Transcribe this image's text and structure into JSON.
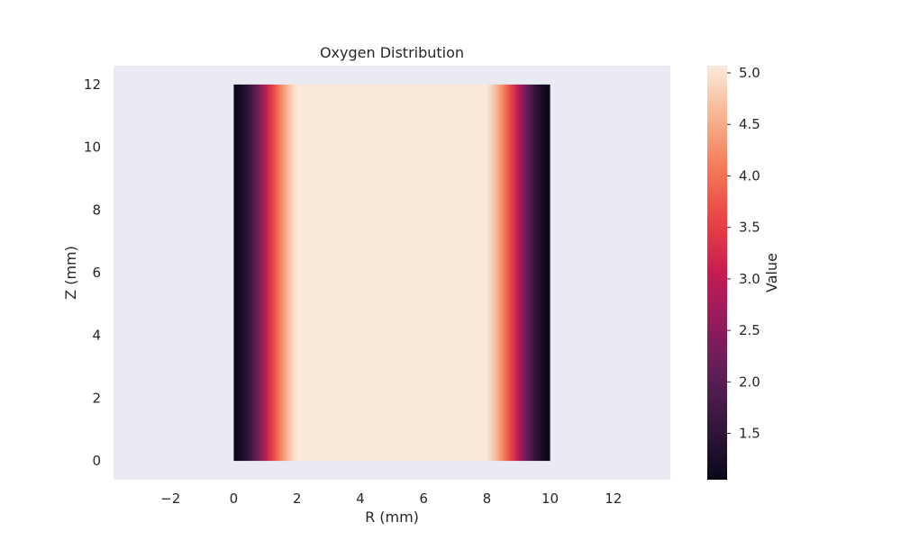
{
  "chart_data": {
    "type": "heatmap",
    "title": "Oxygen Distribution",
    "xlabel": "R (mm)",
    "ylabel": "Z (mm)",
    "xlim": [
      -3.8,
      13.8
    ],
    "ylim": [
      -0.6,
      12.6
    ],
    "x_ticks": [
      -2,
      0,
      2,
      4,
      6,
      8,
      10,
      12
    ],
    "y_ticks": [
      0,
      2,
      4,
      6,
      8,
      10,
      12
    ],
    "grid": false,
    "background": "#eaeaf2",
    "data_extent": {
      "r": [
        0,
        10
      ],
      "z": [
        0,
        12
      ]
    },
    "radial_profile": {
      "r": [
        0,
        0.25,
        0.5,
        0.75,
        1.0,
        1.25,
        1.5,
        1.75,
        2.0,
        8.0,
        8.25,
        8.5,
        8.75,
        9.0,
        9.25,
        9.5,
        9.75,
        10
      ],
      "value": [
        1.05,
        1.2,
        1.6,
        2.2,
        2.9,
        3.6,
        4.2,
        4.7,
        5.05,
        5.05,
        4.7,
        4.2,
        3.6,
        2.9,
        2.2,
        1.6,
        1.2,
        1.05
      ]
    },
    "note_uniform_in_z": true,
    "colorbar": {
      "label": "Value",
      "colormap": "rocket",
      "min": 1.05,
      "max": 5.07,
      "ticks": [
        1.5,
        2.0,
        2.5,
        3.0,
        3.5,
        4.0,
        4.5,
        5.0
      ]
    }
  }
}
